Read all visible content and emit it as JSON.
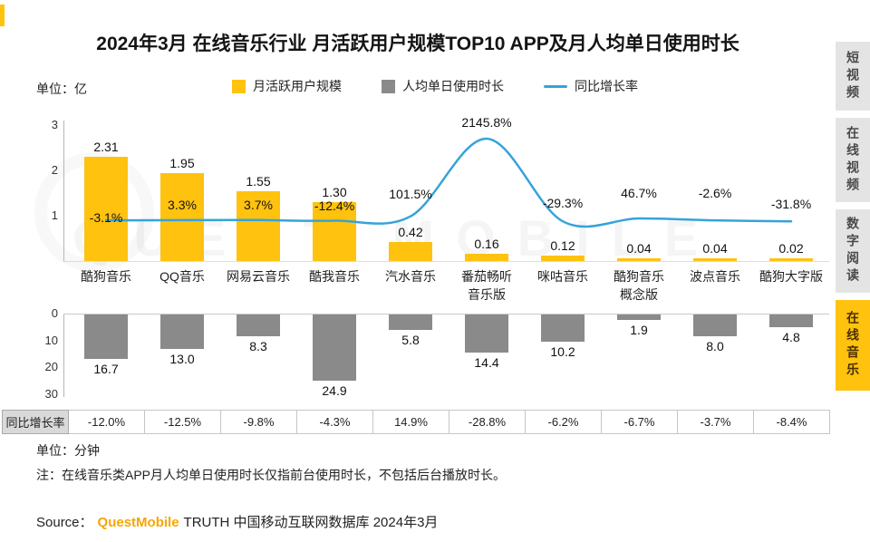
{
  "title": "2024年3月 在线音乐行业 月活跃用户规模TOP10 APP及月人均单日使用时长",
  "unit_top": "单位：亿",
  "unit_bottom": "单位：分钟",
  "watermark": "QUEST MOBILE",
  "colors": {
    "accent": "#FFC20E",
    "gray": "#8A8A8A",
    "line": "#35A3DA"
  },
  "legend": [
    {
      "label": "月活跃用户规模",
      "swatch": "yellow-square"
    },
    {
      "label": "人均单日使用时长",
      "swatch": "gray-square"
    },
    {
      "label": "同比增长率",
      "swatch": "blue-line"
    }
  ],
  "growth_row_label": "同比增长率",
  "note": "注：在线音乐类APP月人均单日使用时长仅指前台使用时长，不包括后台播放时长。",
  "source": {
    "prefix": "Source：",
    "brand": "QuestMobile",
    "suffix": "TRUTH 中国移动互联网数据库 2024年3月"
  },
  "sidebar": {
    "items": [
      {
        "label": "短视频",
        "active": false
      },
      {
        "label": "在线视频",
        "active": false
      },
      {
        "label": "数字阅读",
        "active": false
      },
      {
        "label": "在线音乐",
        "active": true
      }
    ]
  },
  "chart_data": {
    "type": "bar",
    "subtype": "dual-panel bar chart with overlaid growth-rate line and growth table row",
    "title": "2024年3月 在线音乐行业 月活跃用户规模TOP10 APP及月人均单日使用时长",
    "categories": [
      "酷狗音乐",
      "QQ音乐",
      "网易云音乐",
      "酷我音乐",
      "汽水音乐",
      "番茄畅听音乐版",
      "咪咕音乐",
      "酷狗音乐概念版",
      "波点音乐",
      "酷狗大字版"
    ],
    "categories_display": [
      "酷狗音乐",
      "QQ音乐",
      "网易云音乐",
      "酷我音乐",
      "汽水音乐",
      "番茄畅听\n音乐版",
      "咪咕音乐",
      "酷狗音乐\n概念版",
      "波点音乐",
      "酷狗大字版"
    ],
    "series": [
      {
        "name": "月活跃用户规模",
        "unit": "亿",
        "render": "bar-up",
        "values": [
          2.31,
          1.95,
          1.55,
          1.3,
          0.42,
          0.16,
          0.12,
          0.04,
          0.04,
          0.02
        ],
        "labels": [
          "2.31",
          "1.95",
          "1.55",
          "1.30",
          "0.42",
          "0.16",
          "0.12",
          "0.04",
          "0.04",
          "0.02"
        ]
      },
      {
        "name": "同比增长率",
        "unit": "%",
        "render": "line",
        "values": [
          -3.1,
          3.3,
          3.7,
          -12.4,
          101.5,
          2145.8,
          -29.3,
          46.7,
          -2.6,
          -31.8
        ],
        "labels": [
          "-3.1%",
          "3.3%",
          "3.7%",
          "-12.4%",
          "101.5%",
          "2145.8%",
          "-29.3%",
          "46.7%",
          "-2.6%",
          "-31.8%"
        ]
      },
      {
        "name": "人均单日使用时长",
        "unit": "分钟",
        "render": "bar-down",
        "values": [
          16.7,
          13.0,
          8.3,
          24.9,
          5.8,
          14.4,
          10.2,
          1.9,
          8.0,
          4.8
        ],
        "labels": [
          "16.7",
          "13.0",
          "8.3",
          "24.9",
          "5.8",
          "14.4",
          "10.2",
          "1.9",
          "8.0",
          "4.8"
        ]
      },
      {
        "name": "同比增长率（时长）",
        "unit": "%",
        "render": "table-row",
        "values": [
          -12.0,
          -12.5,
          -9.8,
          -4.3,
          14.9,
          -28.8,
          -6.2,
          -6.7,
          -3.7,
          -8.4
        ],
        "labels": [
          "-12.0%",
          "-12.5%",
          "-9.8%",
          "-4.3%",
          "14.9%",
          "-28.8%",
          "-6.2%",
          "-6.7%",
          "-3.7%",
          "-8.4%"
        ]
      }
    ],
    "top_axis_ticks": [
      3,
      2,
      1
    ],
    "bottom_axis_ticks": [
      0,
      10,
      20,
      30
    ],
    "top_axis_range": [
      0,
      3
    ],
    "bottom_axis_range": [
      0,
      30
    ],
    "grid": false,
    "legend_position": "top-center"
  }
}
